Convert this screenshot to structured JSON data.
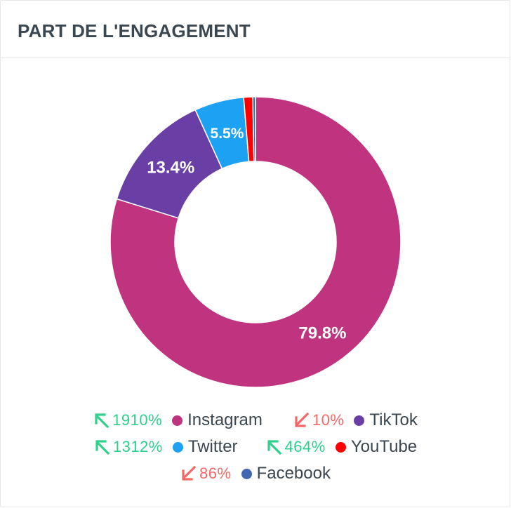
{
  "header": {
    "title": "PART DE L'ENGAGEMENT"
  },
  "chart_data": {
    "type": "pie",
    "variant": "donut",
    "title": "PART DE L'ENGAGEMENT",
    "series": [
      {
        "name": "Instagram",
        "value": 79.8,
        "label": "79.8%",
        "color": "#c0337f",
        "trend": "1910%",
        "trend_direction": "up"
      },
      {
        "name": "TikTok",
        "value": 13.4,
        "label": "13.4%",
        "color": "#6a3fa5",
        "trend": "10%",
        "trend_direction": "down"
      },
      {
        "name": "Twitter",
        "value": 5.5,
        "label": "5.5%",
        "color": "#1da1f2",
        "trend": "1312%",
        "trend_direction": "up"
      },
      {
        "name": "YouTube",
        "value": 1.0,
        "label": "",
        "color": "#ff0000",
        "trend": "464%",
        "trend_direction": "up"
      },
      {
        "name": "Facebook",
        "value": 0.3,
        "label": "",
        "color": "#4267b2",
        "trend": "86%",
        "trend_direction": "down"
      }
    ]
  }
}
